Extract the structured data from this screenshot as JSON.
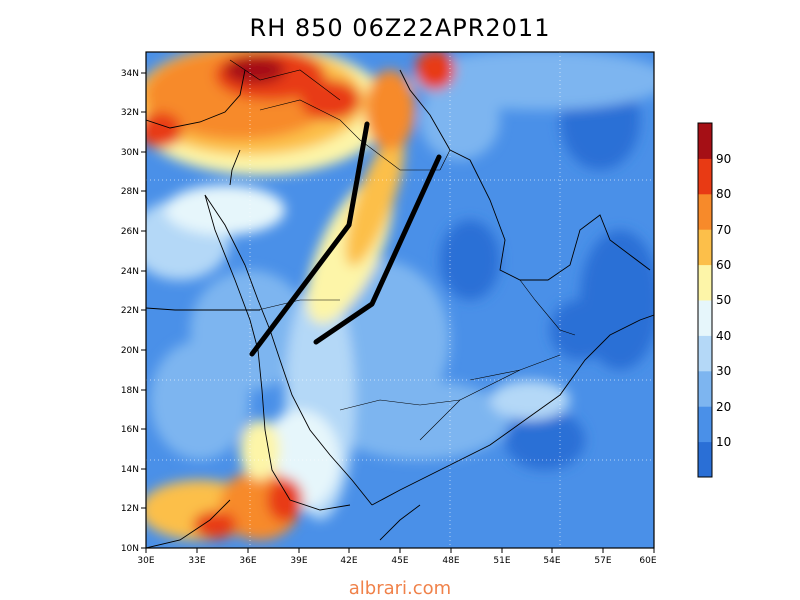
{
  "title": "RH 850  06Z22APR2011",
  "map": {
    "lon_ticks": [
      "30E",
      "33E",
      "36E",
      "39E",
      "42E",
      "45E",
      "48E",
      "51E",
      "54E",
      "57E",
      "60E"
    ],
    "lat_ticks": [
      "10N",
      "12N",
      "14N",
      "16N",
      "18N",
      "20N",
      "22N",
      "24N",
      "26N",
      "28N",
      "30N",
      "32N",
      "34N"
    ],
    "lon_range": [
      30,
      60
    ],
    "lat_range": [
      10,
      35
    ]
  },
  "colorbar": {
    "labels": [
      "10",
      "20",
      "30",
      "40",
      "50",
      "60",
      "70",
      "80",
      "90"
    ],
    "colors": [
      "#2a6fd6",
      "#4a90e8",
      "#7db5f0",
      "#b4d8f7",
      "#e6f6fb",
      "#fdf5a8",
      "#fcbf4a",
      "#f78a2a",
      "#e83a14",
      "#a50f15"
    ]
  },
  "watermark": "albrari.com"
}
